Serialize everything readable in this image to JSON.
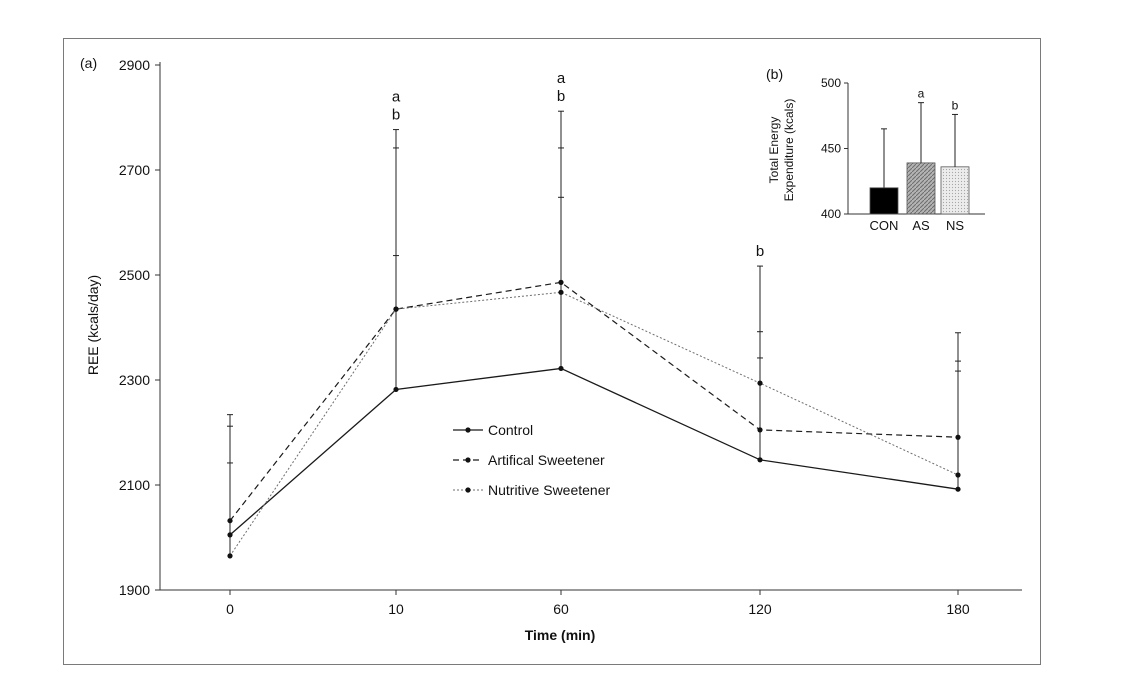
{
  "chart_data": [
    {
      "type": "line",
      "panel_label": "(a)",
      "title": "",
      "xlabel": "Time (min)",
      "ylabel": "REE (kcals/day)",
      "categories": [
        "0",
        "10",
        "60",
        "120",
        "180"
      ],
      "yticks": [
        "1900",
        "2100",
        "2300",
        "2500",
        "2700",
        "2900"
      ],
      "ylim": [
        1900,
        2900
      ],
      "series": [
        {
          "name": "Control",
          "style": "solid",
          "color": "#1a1a1a",
          "values": [
            2005,
            2282,
            2322,
            2148,
            2092
          ],
          "err_upper": [
            2142,
            2537,
            2648,
            2342,
            2317
          ]
        },
        {
          "name": "Artifical Sweetener",
          "style": "dashed",
          "color": "#1a1a1a",
          "values": [
            2032,
            2435,
            2486,
            2205,
            2191
          ],
          "err_upper": [
            2212,
            2742,
            2742,
            2392,
            2336
          ]
        },
        {
          "name": "Nutritive Sweetener",
          "style": "dotted",
          "color": "#6e6e6e",
          "values": [
            1965,
            2435,
            2467,
            2294,
            2119
          ],
          "err_upper": [
            2234,
            2777,
            2812,
            2517,
            2390
          ]
        }
      ],
      "annotations": [
        {
          "category": "10",
          "lines": [
            "a",
            "b"
          ]
        },
        {
          "category": "60",
          "lines": [
            "a",
            "b"
          ]
        },
        {
          "category": "120",
          "lines": [
            "b"
          ]
        }
      ],
      "legend": {
        "placement": "center",
        "entries": [
          "Control",
          "Artifical Sweetener",
          "Nutritive Sweetener"
        ]
      }
    },
    {
      "type": "bar",
      "panel_label": "(b)",
      "title": "",
      "xlabel": "",
      "ylabel": "Total Energy Expenditure (kcals)",
      "ylabel_lines": [
        "Total Energy",
        "Expenditure (kcals)"
      ],
      "categories": [
        "CON",
        "AS",
        "NS"
      ],
      "values": [
        420,
        439,
        436
      ],
      "err_upper": [
        465,
        485,
        476
      ],
      "colors": [
        "#000000",
        "#9e9e9e",
        "#dedede"
      ],
      "patterns": [
        "solid",
        "hatch",
        "dots"
      ],
      "annotations": [
        {
          "category": "AS",
          "text": "a"
        },
        {
          "category": "NS",
          "text": "b"
        }
      ],
      "yticks": [
        "400",
        "450",
        "500"
      ],
      "ylim": [
        400,
        500
      ]
    }
  ]
}
